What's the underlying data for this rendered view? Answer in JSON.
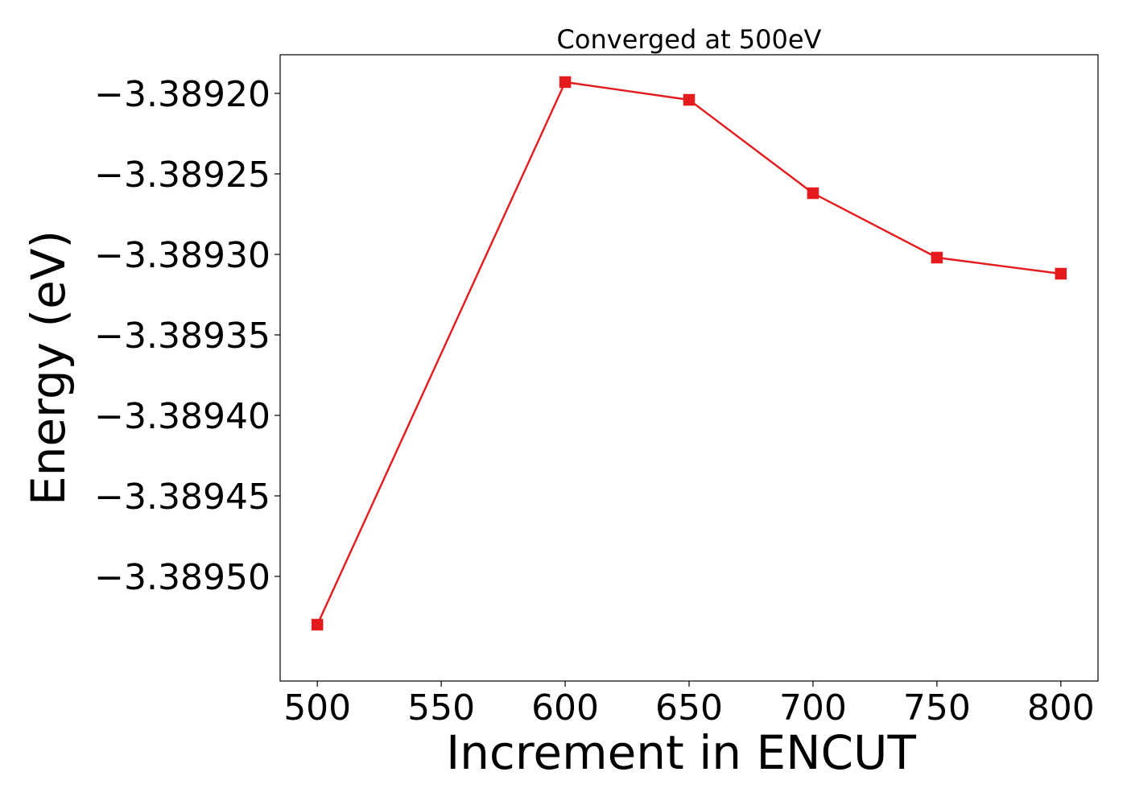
{
  "chart_data": {
    "type": "line",
    "title": "Converged at 500eV",
    "xlabel": "Increment in ENCUT",
    "ylabel": "Energy (eV)",
    "x": [
      500,
      600,
      650,
      700,
      750,
      800
    ],
    "series": [
      {
        "values": [
          -3.38953,
          -3.389193,
          -3.389204,
          -3.389262,
          -3.389302,
          -3.389312
        ],
        "color": "#e41a1c",
        "marker": "square"
      }
    ],
    "xlim": [
      485,
      815
    ],
    "ylim": [
      -3.389565,
      -3.389176
    ],
    "xticks": [
      500,
      550,
      600,
      650,
      700,
      750,
      800
    ],
    "xtick_labels": [
      "500",
      "550",
      "600",
      "650",
      "700",
      "750",
      "800"
    ],
    "yticks": [
      -3.3892,
      -3.38925,
      -3.3893,
      -3.38935,
      -3.3894,
      -3.38945,
      -3.3895
    ],
    "ytick_labels": [
      "−3.38920",
      "−3.38925",
      "−3.38930",
      "−3.38935",
      "−3.38940",
      "−3.38945",
      "−3.38950"
    ],
    "grid": false,
    "legend": "none"
  }
}
